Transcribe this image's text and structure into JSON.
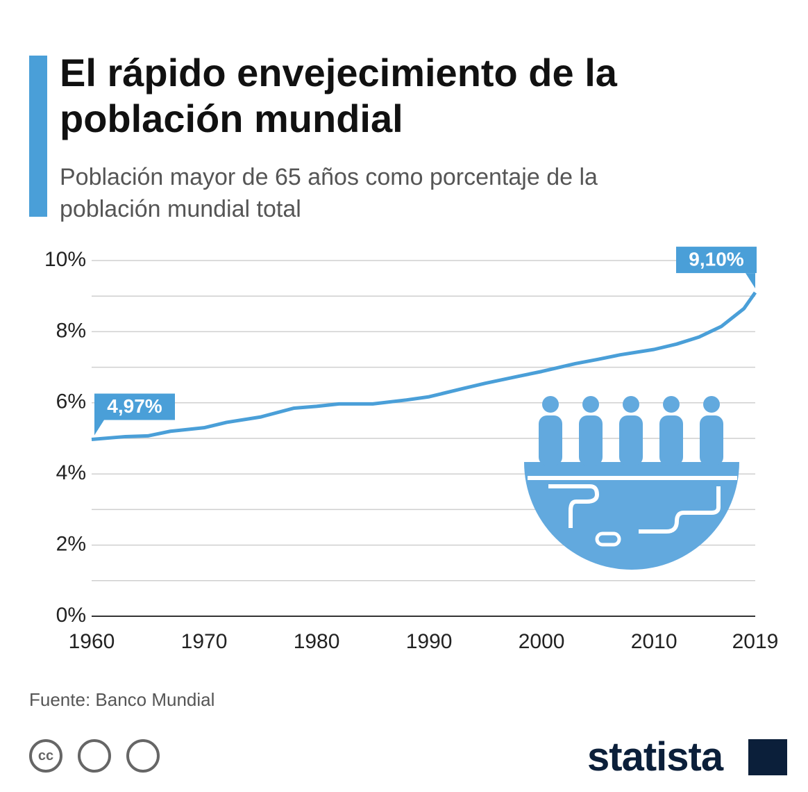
{
  "chart_data": {
    "type": "line",
    "title": "El rápido envejecimiento de la población mundial",
    "subtitle": "Población mayor de 65 años como porcentaje de la población mundial total",
    "x": [
      1960,
      1963,
      1965,
      1967,
      1970,
      1972,
      1975,
      1978,
      1980,
      1982,
      1985,
      1988,
      1990,
      1993,
      1995,
      1998,
      2000,
      2003,
      2005,
      2007,
      2010,
      2012,
      2014,
      2016,
      2018,
      2019
    ],
    "values": [
      4.97,
      5.05,
      5.07,
      5.2,
      5.3,
      5.45,
      5.6,
      5.85,
      5.9,
      5.97,
      5.97,
      6.08,
      6.17,
      6.4,
      6.55,
      6.75,
      6.88,
      7.1,
      7.22,
      7.35,
      7.5,
      7.65,
      7.85,
      8.15,
      8.65,
      9.1
    ],
    "value_labels": [
      "4,97%",
      null,
      null,
      null,
      null,
      null,
      null,
      null,
      null,
      null,
      null,
      null,
      null,
      null,
      null,
      null,
      null,
      null,
      null,
      null,
      null,
      null,
      null,
      null,
      null,
      "9,10%"
    ],
    "color": "#4a9fd8",
    "xlim": [
      1960,
      2019
    ],
    "xticks": [
      1960,
      1970,
      1980,
      1990,
      2000,
      2010,
      2019
    ],
    "ylim": [
      0,
      10
    ],
    "yticks": [
      {
        "value": 0,
        "label": "0%"
      },
      {
        "value": 2,
        "label": "2%"
      },
      {
        "value": 4,
        "label": "4%"
      },
      {
        "value": 6,
        "label": "6%"
      },
      {
        "value": 8,
        "label": "8%"
      },
      {
        "value": 10,
        "label": "10%"
      }
    ],
    "grid": true,
    "minor_grid": true,
    "source": "Fuente: Banco Mundial",
    "license": "cc",
    "logo": "statista"
  }
}
